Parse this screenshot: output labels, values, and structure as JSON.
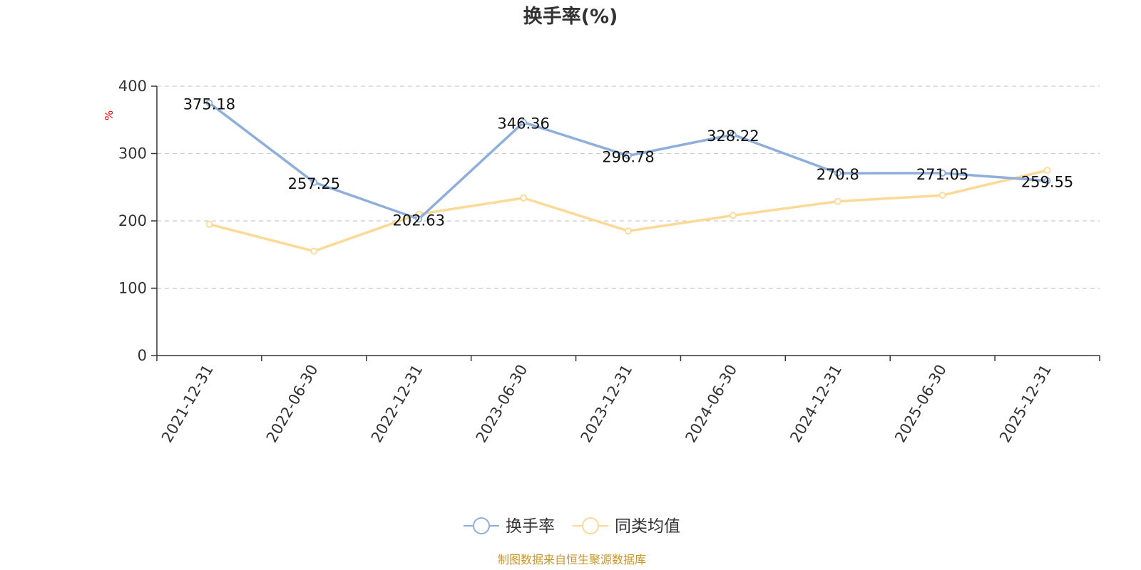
{
  "chart_data": {
    "type": "line",
    "title": "换手率(%)",
    "ylabel": "%",
    "ylim": [
      0,
      400
    ],
    "yticks": [
      0,
      100,
      200,
      300,
      400
    ],
    "grid": true,
    "legend_position": "bottom-center",
    "categories": [
      "2021-12-31",
      "2022-06-30",
      "2022-12-31",
      "2023-06-30",
      "2023-12-31",
      "2024-06-30",
      "2024-12-31",
      "2025-06-30",
      "2025-12-31"
    ],
    "series": [
      {
        "name": "换手率",
        "color": "#8eaedb",
        "values": [
          375.18,
          257.25,
          202.63,
          346.36,
          296.78,
          328.22,
          270.8,
          271.05,
          259.55
        ],
        "labels": [
          "375.18",
          "257.25",
          "202.63",
          "346.36",
          "296.78",
          "328.22",
          "270.8",
          "271.05",
          "259.55"
        ]
      },
      {
        "name": "同类均值",
        "color": "#fcd996",
        "values": [
          195,
          155,
          210,
          234,
          185,
          208,
          229,
          238,
          275
        ]
      }
    ]
  },
  "footer": {
    "source": "制图数据来自恒生聚源数据库"
  }
}
